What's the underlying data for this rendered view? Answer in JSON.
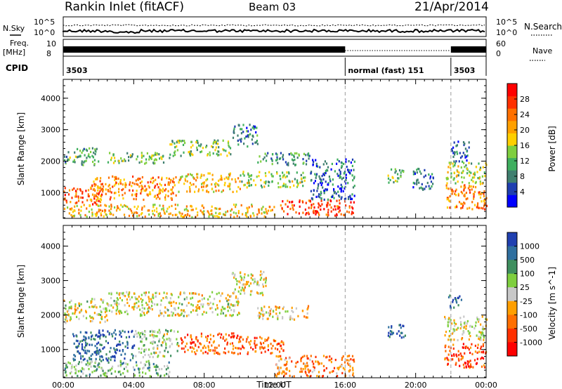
{
  "header": {
    "station": "Rankin Inlet (fitACF)",
    "beam": "Beam 03",
    "date": "21/Apr/2014"
  },
  "left_labels": {
    "nsky": "N.Sky",
    "freq": "Freq.",
    "freq_unit": "[MHz]",
    "cpid": "CPID"
  },
  "right_labels": {
    "nsearch": "N.Search",
    "nave": "Nave"
  },
  "small_axes": {
    "noise_top": "10^5",
    "noise_bottom": "10^0",
    "freq_top": "10",
    "freq_bottom": "8",
    "nave_top": "60",
    "nave_bottom": "0"
  },
  "cpid_segments": [
    {
      "start_hour": 0,
      "label": "3503"
    },
    {
      "start_hour": 16,
      "label": "normal (fast) 151"
    },
    {
      "start_hour": 22,
      "label": "3503"
    }
  ],
  "chart_data": [
    {
      "type": "heatmap",
      "name": "power",
      "ylabel": "Slant Range [km]",
      "ylim": [
        180,
        4600
      ],
      "yticks": [
        1000,
        2000,
        3000,
        4000
      ],
      "xlim": [
        0,
        24
      ],
      "xticks": [
        "00:00",
        "04:00",
        "08:00",
        "12:00",
        "16:00",
        "20:00",
        "00:00"
      ],
      "colorbar": {
        "label": "Power [dB]",
        "ticks": [
          "4",
          "8",
          "12",
          "16",
          "20",
          "24",
          "28"
        ],
        "colors": [
          "#0000ff",
          "#1f3fb0",
          "#3f7f6f",
          "#3faf5f",
          "#7fcf3f",
          "#ffcf00",
          "#ffa000",
          "#ff7000",
          "#ff3000",
          "#ff0000"
        ]
      },
      "scatter_regions": [
        {
          "t": [
            0.0,
            2.2
          ],
          "r": [
            650,
            1200
          ],
          "level": 0.8
        },
        {
          "t": [
            1.5,
            6.5
          ],
          "r": [
            800,
            1550
          ],
          "level": 0.7
        },
        {
          "t": [
            6.5,
            10.0
          ],
          "r": [
            1050,
            1650
          ],
          "level": 0.6
        },
        {
          "t": [
            10.0,
            13.7
          ],
          "r": [
            1200,
            1700
          ],
          "level": 0.45
        },
        {
          "t": [
            0.0,
            2.0
          ],
          "r": [
            1900,
            2450
          ],
          "level": 0.35
        },
        {
          "t": [
            2.5,
            6.0
          ],
          "r": [
            1950,
            2300
          ],
          "level": 0.4
        },
        {
          "t": [
            6.0,
            9.5
          ],
          "r": [
            2200,
            2700
          ],
          "level": 0.4
        },
        {
          "t": [
            9.5,
            11.0
          ],
          "r": [
            2500,
            3200
          ],
          "level": 0.25
        },
        {
          "t": [
            11.0,
            14.0
          ],
          "r": [
            1900,
            2300
          ],
          "level": 0.3
        },
        {
          "t": [
            12.3,
            16.5
          ],
          "r": [
            300,
            800
          ],
          "level": 0.85
        },
        {
          "t": [
            0.0,
            12.0
          ],
          "r": [
            250,
            650
          ],
          "level": 0.6
        },
        {
          "t": [
            14.0,
            16.5
          ],
          "r": [
            800,
            2100
          ],
          "level": 0.2
        },
        {
          "t": [
            18.4,
            19.4
          ],
          "r": [
            1350,
            1800
          ],
          "level": 0.4
        },
        {
          "t": [
            19.8,
            21.0
          ],
          "r": [
            1100,
            1800
          ],
          "level": 0.25
        },
        {
          "t": [
            21.7,
            24.0
          ],
          "r": [
            500,
            1300
          ],
          "level": 0.7
        },
        {
          "t": [
            21.7,
            24.0
          ],
          "r": [
            1300,
            2000
          ],
          "level": 0.45
        },
        {
          "t": [
            22.0,
            23.0
          ],
          "r": [
            2000,
            2700
          ],
          "level": 0.2
        }
      ]
    },
    {
      "type": "heatmap",
      "name": "velocity",
      "ylabel": "Slant Range [km]",
      "ylim": [
        180,
        4600
      ],
      "yticks": [
        1000,
        2000,
        3000,
        4000
      ],
      "xlim": [
        0,
        24
      ],
      "xticks": [
        "00:00",
        "04:00",
        "08:00",
        "12:00",
        "16:00",
        "20:00",
        "00:00"
      ],
      "xlabel": "Time UT",
      "colorbar": {
        "label": "Velocity [m s^-1]",
        "ticks": [
          "1000",
          "500",
          "100",
          "25",
          "-25",
          "-100",
          "-500",
          "-1000"
        ],
        "colors": [
          "#2040b0",
          "#2f6f9f",
          "#3f8f5f",
          "#7fcf3f",
          "#c8c8c8",
          "#ff9f00",
          "#ff6f00",
          "#ff3000",
          "#ff0000"
        ]
      },
      "scatter_regions": [
        {
          "t": [
            0.0,
            2.5
          ],
          "r": [
            1800,
            2500
          ],
          "level": 0.5
        },
        {
          "t": [
            2.5,
            10.0
          ],
          "r": [
            2000,
            2700
          ],
          "level": 0.5
        },
        {
          "t": [
            9.5,
            11.5
          ],
          "r": [
            2600,
            3300
          ],
          "level": 0.5
        },
        {
          "t": [
            11.0,
            14.0
          ],
          "r": [
            1900,
            2300
          ],
          "level": 0.55
        },
        {
          "t": [
            0.5,
            4.0
          ],
          "r": [
            700,
            1600
          ],
          "level": 0.15
        },
        {
          "t": [
            4.0,
            6.5
          ],
          "r": [
            800,
            1600
          ],
          "level": 0.4
        },
        {
          "t": [
            6.5,
            10.0
          ],
          "r": [
            900,
            1500
          ],
          "level": 0.75
        },
        {
          "t": [
            10.0,
            12.5
          ],
          "r": [
            900,
            1400
          ],
          "level": 0.75
        },
        {
          "t": [
            12.0,
            16.5
          ],
          "r": [
            250,
            850
          ],
          "level": 0.7
        },
        {
          "t": [
            0.0,
            6.0
          ],
          "r": [
            250,
            700
          ],
          "level": 0.35
        },
        {
          "t": [
            18.4,
            19.4
          ],
          "r": [
            1350,
            1800
          ],
          "level": 0.1
        },
        {
          "t": [
            21.6,
            24.0
          ],
          "r": [
            500,
            1200
          ],
          "level": 0.8
        },
        {
          "t": [
            21.6,
            24.0
          ],
          "r": [
            1300,
            2000
          ],
          "level": 0.5
        },
        {
          "t": [
            21.8,
            22.6
          ],
          "r": [
            2200,
            2600
          ],
          "level": 0.1
        }
      ]
    }
  ]
}
